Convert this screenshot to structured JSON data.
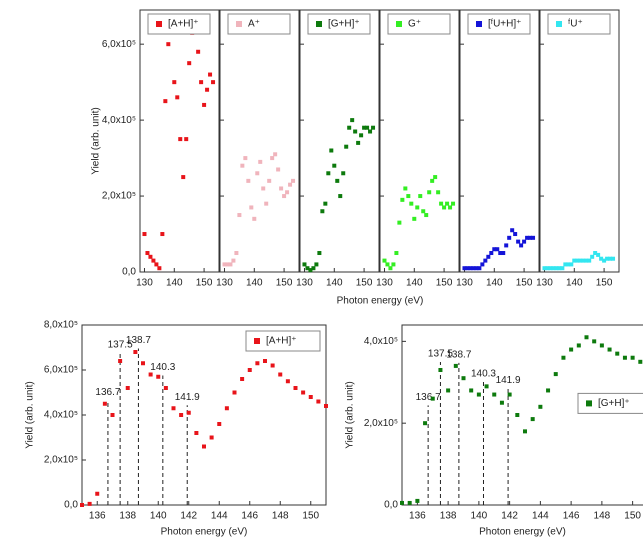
{
  "chart_data": [
    {
      "type": "scatter",
      "xlabel": "Photon energy (eV)",
      "ylabel": "Yield (arb. unit)",
      "legend": "top",
      "xlim": [
        128.5,
        155
      ],
      "xticks": [
        130,
        140,
        150
      ],
      "ylim": [
        0,
        690000
      ],
      "yticks": [
        {
          "value": 0,
          "label": "0,0"
        },
        {
          "value": 200000,
          "label": "2,0x10⁵"
        },
        {
          "value": 400000,
          "label": "4,0x10⁵"
        },
        {
          "value": 600000,
          "label": "6,0x10⁵"
        }
      ],
      "x": [
        130,
        131,
        132,
        133,
        134,
        135,
        136,
        137,
        138,
        139,
        140,
        141,
        142,
        143,
        144,
        145,
        146,
        147,
        148,
        149,
        150,
        151,
        152,
        153
      ],
      "series": [
        {
          "name": "[A+H]⁺",
          "color": "#e8141a",
          "values": [
            100000,
            50000,
            40000,
            30000,
            20000,
            10000,
            100000,
            450000,
            600000,
            650000,
            500000,
            460000,
            350000,
            250000,
            350000,
            550000,
            630000,
            650000,
            580000,
            500000,
            440000,
            480000,
            520000,
            500000
          ]
        },
        {
          "name": "A⁺",
          "color": "#f0b4bc",
          "values": [
            20000,
            20000,
            20000,
            30000,
            50000,
            150000,
            280000,
            300000,
            240000,
            170000,
            140000,
            260000,
            290000,
            220000,
            180000,
            240000,
            300000,
            310000,
            270000,
            220000,
            200000,
            210000,
            230000,
            240000
          ]
        },
        {
          "name": "[G+H]⁺",
          "color": "#0d7a0d",
          "values": [
            20000,
            10000,
            5000,
            10000,
            20000,
            50000,
            160000,
            180000,
            260000,
            320000,
            280000,
            240000,
            200000,
            260000,
            330000,
            380000,
            400000,
            370000,
            340000,
            360000,
            380000,
            380000,
            370000,
            380000
          ]
        },
        {
          "name": "G⁺",
          "color": "#33ee22",
          "values": [
            30000,
            20000,
            10000,
            20000,
            50000,
            130000,
            190000,
            220000,
            200000,
            180000,
            140000,
            170000,
            200000,
            160000,
            150000,
            210000,
            240000,
            250000,
            210000,
            180000,
            170000,
            180000,
            170000,
            180000
          ]
        },
        {
          "name": "[ᶠU+H]⁺",
          "color": "#1414d8",
          "values": [
            10000,
            10000,
            10000,
            10000,
            10000,
            10000,
            20000,
            30000,
            40000,
            50000,
            60000,
            60000,
            50000,
            50000,
            70000,
            90000,
            110000,
            100000,
            80000,
            70000,
            80000,
            90000,
            90000,
            90000
          ]
        },
        {
          "name": "ᶠU⁺",
          "color": "#33e6f0",
          "values": [
            10000,
            10000,
            10000,
            10000,
            10000,
            10000,
            10000,
            20000,
            20000,
            20000,
            30000,
            30000,
            30000,
            30000,
            30000,
            30000,
            40000,
            50000,
            45000,
            35000,
            30000,
            35000,
            35000,
            35000
          ]
        }
      ]
    },
    {
      "type": "scatter",
      "xlabel": "Photon energy (eV)",
      "ylabel": "Yield (arb. unit)",
      "legend": "upper right",
      "xlim": [
        135,
        151
      ],
      "xticks": [
        136,
        138,
        140,
        142,
        144,
        146,
        148,
        150
      ],
      "ylim": [
        0,
        800000
      ],
      "yticks": [
        {
          "value": 0,
          "label": "0,0"
        },
        {
          "value": 200000,
          "label": "2,0x10⁵"
        },
        {
          "value": 400000,
          "label": "4,0x10⁵"
        },
        {
          "value": 600000,
          "label": "6,0x10⁵"
        },
        {
          "value": 800000,
          "label": "8,0x10⁵"
        }
      ],
      "annotations": [
        136.7,
        137.5,
        138.7,
        140.3,
        141.9
      ],
      "x": [
        135,
        135.5,
        136,
        136.5,
        137,
        137.5,
        138,
        138.5,
        139,
        139.5,
        140,
        140.5,
        141,
        141.5,
        142,
        142.5,
        143,
        143.5,
        144,
        144.5,
        145,
        145.5,
        146,
        146.5,
        147,
        147.5,
        148,
        148.5,
        149,
        149.5,
        150,
        150.5,
        151
      ],
      "series": [
        {
          "name": "[A+H]⁺",
          "color": "#e8141a",
          "values": [
            0,
            5000,
            50000,
            450000,
            400000,
            640000,
            520000,
            680000,
            630000,
            580000,
            570000,
            520000,
            430000,
            400000,
            410000,
            320000,
            260000,
            300000,
            360000,
            430000,
            500000,
            560000,
            600000,
            630000,
            640000,
            620000,
            580000,
            550000,
            520000,
            500000,
            480000,
            460000,
            440000
          ]
        }
      ]
    },
    {
      "type": "scatter",
      "xlabel": "Photon energy (eV)",
      "ylabel": "Yield (arb. unit)",
      "legend": "center right",
      "xlim": [
        135,
        151
      ],
      "xticks": [
        136,
        138,
        140,
        142,
        144,
        146,
        148,
        150
      ],
      "ylim": [
        0,
        440000
      ],
      "yticks": [
        {
          "value": 0,
          "label": "0,0"
        },
        {
          "value": 200000,
          "label": "2,0x10⁵"
        },
        {
          "value": 400000,
          "label": "4,0x10⁵"
        }
      ],
      "annotations": [
        136.7,
        137.5,
        138.7,
        140.3,
        141.9
      ],
      "x": [
        135,
        135.5,
        136,
        136.5,
        137,
        137.5,
        138,
        138.5,
        139,
        139.5,
        140,
        140.5,
        141,
        141.5,
        142,
        142.5,
        143,
        143.5,
        144,
        144.5,
        145,
        145.5,
        146,
        146.5,
        147,
        147.5,
        148,
        148.5,
        149,
        149.5,
        150,
        150.5,
        151
      ],
      "series": [
        {
          "name": "[G+H]⁺",
          "color": "#0d7a0d",
          "values": [
            5000,
            5000,
            10000,
            200000,
            260000,
            330000,
            280000,
            340000,
            310000,
            280000,
            270000,
            290000,
            270000,
            250000,
            270000,
            220000,
            180000,
            210000,
            240000,
            280000,
            320000,
            360000,
            380000,
            390000,
            410000,
            400000,
            390000,
            380000,
            370000,
            360000,
            360000,
            350000,
            350000
          ]
        }
      ]
    }
  ]
}
